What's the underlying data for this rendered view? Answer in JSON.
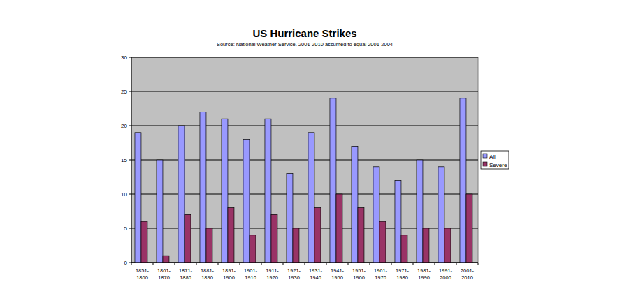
{
  "chart_data": {
    "type": "bar",
    "title": "US Hurricane Strikes",
    "subtitle": "Source: National Weather Service. 2001-2010 assumed to equal 2001-2004",
    "categories": [
      "1851-1860",
      "1861-1870",
      "1871-1880",
      "1881-1890",
      "1891-1900",
      "1901-1910",
      "1911-1920",
      "1921-1930",
      "1931-1940",
      "1941-1950",
      "1951-1960",
      "1961-1970",
      "1971-1980",
      "1981-1990",
      "1991-2000",
      "2001-2010"
    ],
    "series": [
      {
        "name": "All",
        "color": "#9999ff",
        "values": [
          19,
          15,
          20,
          22,
          21,
          18,
          21,
          13,
          19,
          24,
          17,
          14,
          12,
          15,
          14,
          24
        ]
      },
      {
        "name": "Severe",
        "color": "#993366",
        "values": [
          6,
          1,
          7,
          5,
          8,
          4,
          7,
          5,
          8,
          10,
          8,
          6,
          4,
          5,
          5,
          10
        ]
      }
    ],
    "ylim": [
      0,
      30
    ],
    "yticks": [
      0,
      5,
      10,
      15,
      20,
      25,
      30
    ],
    "grid": true,
    "legend": "right"
  }
}
